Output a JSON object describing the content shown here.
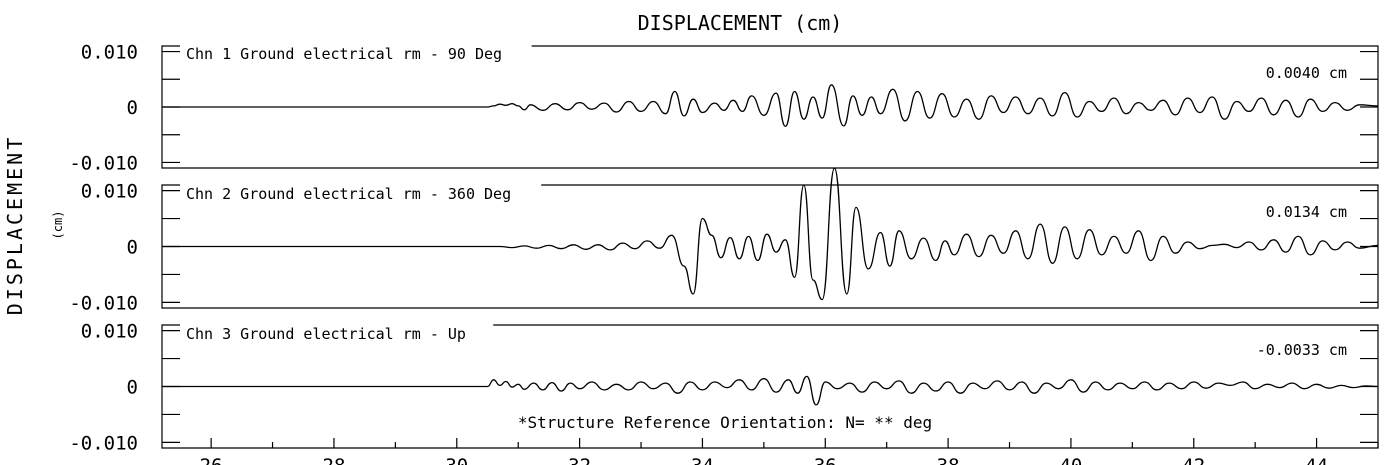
{
  "chart_data": {
    "type": "line",
    "title": "DISPLACEMENT (cm)",
    "ylabel": "DISPLACEMENT",
    "ylabel_unit": "(cm)",
    "xlim": [
      25.2,
      45.0
    ],
    "x_ticks": [
      26,
      28,
      30,
      32,
      34,
      36,
      38,
      40,
      42,
      44
    ],
    "x_tick_labels": [
      "26",
      "28",
      "30",
      "32",
      "34",
      "36",
      "38",
      "40",
      "42",
      "44"
    ],
    "footnote": "*Structure Reference Orientation: N= ** deg",
    "panels": [
      {
        "label": "Chn 1  Ground electrical rm - 90 Deg",
        "ylim": [
          -0.011,
          0.011
        ],
        "y_ticks": [
          0.01,
          0,
          -0.01
        ],
        "y_tick_labels": [
          "0.010",
          "0",
          "-0.010"
        ],
        "peak_label": "0.0040  cm",
        "series": [
          {
            "x": [
              25.2,
              30.5,
              30.6,
              30.7,
              30.8,
              30.9,
              31.0,
              31.1,
              31.2,
              31.4,
              31.6,
              31.8,
              32.0,
              32.2,
              32.4,
              32.6,
              32.8,
              33.0,
              33.2,
              33.4,
              33.55,
              33.7,
              33.85,
              34.0,
              34.2,
              34.35,
              34.5,
              34.65,
              34.8,
              35.0,
              35.2,
              35.35,
              35.5,
              35.65,
              35.8,
              35.95,
              36.1,
              36.3,
              36.45,
              36.6,
              36.75,
              36.9,
              37.1,
              37.3,
              37.5,
              37.7,
              37.9,
              38.1,
              38.3,
              38.5,
              38.7,
              38.9,
              39.1,
              39.3,
              39.5,
              39.7,
              39.9,
              40.1,
              40.3,
              40.5,
              40.7,
              40.9,
              41.1,
              41.3,
              41.5,
              41.7,
              41.9,
              42.1,
              42.3,
              42.5,
              42.7,
              42.9,
              43.1,
              43.3,
              43.5,
              43.7,
              43.9,
              44.1,
              44.3,
              44.5,
              44.7,
              45.0
            ],
            "y": [
              0,
              0,
              0.0002,
              0.0005,
              0.0003,
              0.0006,
              0.0002,
              -0.0005,
              0.0004,
              -0.0006,
              0.0006,
              -0.0005,
              0.0008,
              -0.0004,
              0.0007,
              -0.0009,
              0.001,
              -0.0008,
              0.001,
              -0.0012,
              0.0028,
              -0.0016,
              0.0014,
              -0.001,
              0.0007,
              -0.0006,
              0.0012,
              -0.0008,
              0.002,
              -0.0015,
              0.0025,
              -0.0035,
              0.0028,
              -0.0022,
              0.0018,
              -0.002,
              0.004,
              -0.0034,
              0.002,
              -0.0015,
              0.0018,
              -0.0012,
              0.0032,
              -0.0025,
              0.0028,
              -0.002,
              0.0024,
              -0.0018,
              0.0014,
              -0.0022,
              0.002,
              -0.001,
              0.0018,
              -0.0012,
              0.0016,
              -0.0016,
              0.0026,
              -0.0018,
              0.001,
              -0.0008,
              0.0016,
              -0.0012,
              0.0008,
              -0.0006,
              0.0012,
              -0.0014,
              0.0016,
              -0.001,
              0.0018,
              -0.0022,
              0.001,
              -0.0008,
              0.0016,
              -0.0014,
              0.0012,
              -0.0018,
              0.0014,
              -0.0008,
              0.0008,
              -0.0006,
              0.0004,
              0.0002
            ]
          }
        ]
      },
      {
        "label": "Chn 2  Ground electrical rm - 360 Deg",
        "ylim": [
          -0.011,
          0.011
        ],
        "y_ticks": [
          0.01,
          0,
          -0.01
        ],
        "y_tick_labels": [
          "0.010",
          "0",
          "-0.010"
        ],
        "peak_label": "0.0134  cm",
        "series": [
          {
            "x": [
              25.2,
              30.7,
              30.9,
              31.1,
              31.3,
              31.5,
              31.7,
              31.9,
              32.1,
              32.3,
              32.5,
              32.7,
              32.9,
              33.1,
              33.3,
              33.5,
              33.7,
              33.85,
              34.0,
              34.15,
              34.3,
              34.45,
              34.6,
              34.75,
              34.9,
              35.05,
              35.2,
              35.35,
              35.5,
              35.65,
              35.8,
              35.95,
              36.15,
              36.35,
              36.5,
              36.7,
              36.9,
              37.05,
              37.2,
              37.4,
              37.6,
              37.8,
              37.95,
              38.1,
              38.3,
              38.5,
              38.7,
              38.9,
              39.1,
              39.3,
              39.5,
              39.7,
              39.9,
              40.1,
              40.3,
              40.5,
              40.7,
              40.9,
              41.1,
              41.3,
              41.5,
              41.7,
              41.9,
              42.1,
              42.3,
              42.5,
              42.7,
              42.9,
              43.1,
              43.3,
              43.5,
              43.7,
              43.9,
              44.1,
              44.3,
              44.5,
              44.7,
              45.0
            ],
            "y": [
              0,
              0,
              -0.0002,
              0.0001,
              -0.0003,
              0.0002,
              -0.0004,
              0.0003,
              -0.0005,
              0.0003,
              -0.0006,
              0.0006,
              -0.0004,
              0.001,
              -0.0003,
              0.002,
              -0.0035,
              -0.0085,
              0.005,
              0.002,
              -0.002,
              0.0016,
              -0.0022,
              0.0018,
              -0.0025,
              0.0022,
              -0.001,
              0.0012,
              -0.0055,
              0.011,
              -0.006,
              -0.0095,
              0.014,
              -0.0085,
              0.007,
              -0.004,
              0.0025,
              -0.0035,
              0.0028,
              -0.0022,
              0.0015,
              -0.0025,
              0.001,
              -0.0015,
              0.0022,
              -0.0018,
              0.002,
              -0.0012,
              0.0028,
              -0.0022,
              0.004,
              -0.003,
              0.0035,
              -0.0022,
              0.003,
              -0.0015,
              0.0018,
              -0.0012,
              0.0028,
              -0.0025,
              0.0018,
              -0.0012,
              0.0008,
              -0.0004,
              0.0002,
              0.0004,
              -0.0002,
              0.0008,
              -0.0006,
              0.0012,
              -0.001,
              0.0018,
              -0.0015,
              0.001,
              -0.0006,
              0.0008,
              -0.0003,
              0.0002
            ]
          }
        ]
      },
      {
        "label": "Chn 3  Ground electrical rm - Up",
        "ylim": [
          -0.011,
          0.011
        ],
        "y_ticks": [
          0.01,
          0,
          -0.01
        ],
        "y_tick_labels": [
          "0.010",
          "0",
          "-0.010"
        ],
        "peak_label": "-0.0033  cm",
        "series": [
          {
            "x": [
              25.2,
              30.5,
              30.6,
              30.7,
              30.8,
              30.9,
              31.0,
              31.1,
              31.25,
              31.4,
              31.55,
              31.7,
              31.85,
              32.0,
              32.2,
              32.4,
              32.6,
              32.8,
              33.0,
              33.2,
              33.4,
              33.6,
              33.8,
              34.0,
              34.2,
              34.4,
              34.6,
              34.8,
              35.0,
              35.2,
              35.4,
              35.55,
              35.7,
              35.85,
              36.0,
              36.2,
              36.4,
              36.6,
              36.8,
              37.0,
              37.2,
              37.4,
              37.6,
              37.8,
              38.0,
              38.2,
              38.4,
              38.6,
              38.8,
              39.0,
              39.2,
              39.4,
              39.6,
              39.8,
              40.0,
              40.2,
              40.4,
              40.6,
              40.8,
              41.0,
              41.2,
              41.4,
              41.6,
              41.8,
              42.0,
              42.2,
              42.4,
              42.6,
              42.8,
              43.0,
              43.2,
              43.4,
              43.6,
              43.8,
              44.0,
              44.2,
              44.4,
              44.6,
              44.8,
              45.0
            ],
            "y": [
              0,
              0,
              0.0012,
              0.0002,
              0.0009,
              -0.0001,
              0.0004,
              -0.0005,
              0.0006,
              -0.0006,
              0.0007,
              -0.0008,
              0.0006,
              -0.0004,
              0.0008,
              -0.0006,
              0.0004,
              -0.0006,
              0.0008,
              -0.0004,
              0.0006,
              -0.0012,
              0.0008,
              -0.0006,
              0.0008,
              -0.0002,
              0.0012,
              -0.0006,
              0.0014,
              -0.001,
              0.0012,
              -0.0012,
              0.0018,
              -0.0033,
              0.0008,
              -0.0004,
              0.0006,
              -0.001,
              0.0008,
              -0.0004,
              0.001,
              -0.0012,
              0.0006,
              -0.0008,
              0.0008,
              -0.0012,
              0.0006,
              -0.0004,
              0.001,
              -0.0006,
              0.0008,
              -0.0012,
              0.0006,
              -0.0004,
              0.0012,
              -0.001,
              0.0008,
              -0.0006,
              0.0006,
              -0.0004,
              0.0008,
              -0.0006,
              0.0006,
              -0.0004,
              0.0008,
              -0.0003,
              0.0006,
              0.0002,
              0.0008,
              -0.0004,
              0.0004,
              -0.0002,
              0.0006,
              -0.0004,
              0.0004,
              -0.0003,
              0.0002,
              -0.0002,
              0.0001,
              0
            ]
          }
        ]
      }
    ]
  }
}
